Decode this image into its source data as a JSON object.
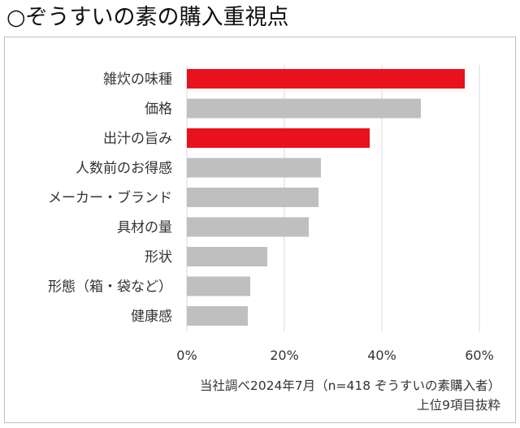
{
  "title": "○ぞうすいの素の購入重視点",
  "colors": {
    "highlight": "#e8121c",
    "default": "#bfbfbf",
    "grid": "#d9d9d9"
  },
  "chart_data": {
    "type": "bar",
    "orientation": "horizontal",
    "categories": [
      "雑炊の味種",
      "価格",
      "出汁の旨み",
      "人数前のお得感",
      "メーカー・ブランド",
      "具材の量",
      "形状",
      "形態（箱・袋など）",
      "健康感"
    ],
    "values": [
      57,
      48,
      37.5,
      27.5,
      27,
      25,
      16.5,
      13,
      12.5
    ],
    "highlighted": [
      true,
      false,
      true,
      false,
      false,
      false,
      false,
      false,
      false
    ],
    "xlim": [
      0,
      60
    ],
    "xticks": [
      0,
      20,
      40,
      60
    ],
    "xtick_labels": [
      "0%",
      "20%",
      "40%",
      "60%"
    ],
    "grid": "vertical",
    "note": "当社調べ2024年7月（n=418 ぞうすいの素購入者）",
    "subnote": "上位9項目抜粋"
  }
}
